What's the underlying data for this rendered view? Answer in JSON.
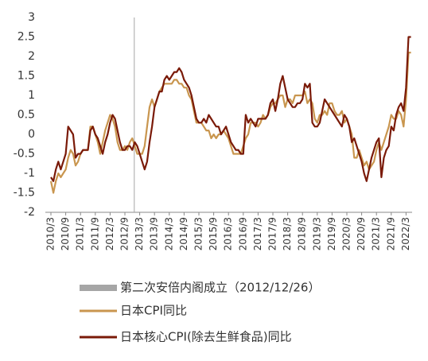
{
  "chart_data": {
    "type": "line",
    "categories": [
      "2010/3",
      null,
      null,
      null,
      null,
      null,
      "2010/9",
      null,
      null,
      null,
      null,
      null,
      "2011/3",
      null,
      null,
      null,
      null,
      null,
      "2011/9",
      null,
      null,
      null,
      null,
      null,
      "2012/3",
      null,
      null,
      null,
      null,
      null,
      "2012/9",
      null,
      null,
      null,
      null,
      null,
      "2013/3",
      null,
      null,
      null,
      null,
      null,
      "2013/9",
      null,
      null,
      null,
      null,
      null,
      "2014/3",
      null,
      null,
      null,
      null,
      null,
      "2014/9",
      null,
      null,
      null,
      null,
      null,
      "2015/3",
      null,
      null,
      null,
      null,
      null,
      "2015/9",
      null,
      null,
      null,
      null,
      null,
      "2016/3",
      null,
      null,
      null,
      null,
      null,
      "2016/9",
      null,
      null,
      null,
      null,
      null,
      "2017/3",
      null,
      null,
      null,
      null,
      null,
      "2017/9",
      null,
      null,
      null,
      null,
      null,
      "2018/3",
      null,
      null,
      null,
      null,
      null,
      "2018/9",
      null,
      null,
      null,
      null,
      null,
      "2019/3",
      null,
      null,
      null,
      null,
      null,
      "2019/9",
      null,
      null,
      null,
      null,
      null,
      "2020/3",
      null,
      null,
      null,
      null,
      null,
      "2020/9",
      null,
      null,
      null,
      null,
      null,
      "2021/3",
      null,
      null,
      null,
      null,
      null,
      "2021/9",
      null,
      null,
      null,
      null,
      null,
      "2022/3",
      null,
      null
    ],
    "series": [
      {
        "name": "日本CPI同比",
        "color": "#c9964f",
        "values": [
          -1.2,
          -1.5,
          -1.2,
          -1.0,
          -1.1,
          -1.0,
          -0.9,
          -0.6,
          -0.4,
          -0.5,
          -0.8,
          -0.7,
          -0.5,
          -0.4,
          -0.4,
          -0.4,
          0.2,
          0.2,
          0.0,
          -0.2,
          -0.5,
          -0.2,
          0.1,
          0.3,
          0.5,
          0.4,
          0.2,
          -0.2,
          -0.4,
          -0.4,
          -0.3,
          -0.4,
          -0.2,
          -0.1,
          -0.3,
          -0.5,
          -0.5,
          -0.5,
          -0.3,
          0.2,
          0.7,
          0.9,
          0.7,
          0.9,
          1.1,
          1.2,
          1.3,
          1.3,
          1.3,
          1.3,
          1.4,
          1.4,
          1.3,
          1.3,
          1.2,
          1.2,
          1.0,
          0.9,
          0.6,
          0.3,
          0.3,
          0.3,
          0.2,
          0.1,
          0.1,
          -0.1,
          0.0,
          -0.1,
          0.0,
          0.0,
          0.1,
          0.0,
          -0.1,
          -0.3,
          -0.5,
          -0.5,
          -0.5,
          -0.5,
          -0.3,
          -0.1,
          0.0,
          0.3,
          0.3,
          0.3,
          0.2,
          0.3,
          0.5,
          0.4,
          0.5,
          0.7,
          0.8,
          0.8,
          0.9,
          1.0,
          1.0,
          0.7,
          0.9,
          0.9,
          0.8,
          1.0,
          1.0,
          1.0,
          1.0,
          1.1,
          0.8,
          0.9,
          0.8,
          0.4,
          0.3,
          0.5,
          0.5,
          0.6,
          0.5,
          0.8,
          0.8,
          0.6,
          0.5,
          0.5,
          0.6,
          0.3,
          0.4,
          0.2,
          0.0,
          -0.6,
          -0.6,
          -0.4,
          -0.6,
          -0.8,
          -0.7,
          -0.9,
          -0.8,
          -0.7,
          -0.4,
          -0.2,
          -0.4,
          -0.2,
          0.0,
          0.2,
          0.5,
          0.4,
          0.4,
          0.6,
          0.5,
          0.2,
          0.9,
          2.1,
          2.1
        ]
      },
      {
        "name": "日本核心CPI(除去生鲜食品)同比",
        "color": "#7a1a08",
        "values": [
          -1.1,
          -1.2,
          -0.9,
          -0.7,
          -0.9,
          -0.7,
          -0.5,
          0.2,
          0.1,
          0.0,
          -0.6,
          -0.5,
          -0.5,
          -0.4,
          -0.4,
          -0.4,
          0.1,
          0.2,
          0.0,
          -0.1,
          -0.3,
          -0.5,
          -0.2,
          0.0,
          0.3,
          0.5,
          0.4,
          0.1,
          -0.2,
          -0.4,
          -0.4,
          -0.3,
          -0.3,
          -0.4,
          -0.2,
          -0.3,
          -0.5,
          -0.7,
          -0.9,
          -0.7,
          -0.2,
          0.2,
          0.7,
          0.9,
          1.1,
          1.1,
          1.4,
          1.5,
          1.4,
          1.5,
          1.6,
          1.6,
          1.7,
          1.6,
          1.4,
          1.3,
          1.2,
          1.0,
          0.7,
          0.4,
          0.3,
          0.3,
          0.4,
          0.3,
          0.5,
          0.4,
          0.3,
          0.2,
          0.2,
          0.0,
          0.1,
          0.2,
          0.0,
          -0.2,
          -0.3,
          -0.4,
          -0.4,
          -0.5,
          -0.5,
          0.5,
          0.3,
          0.4,
          0.3,
          0.2,
          0.4,
          0.4,
          0.4,
          0.4,
          0.5,
          0.8,
          0.9,
          0.6,
          0.9,
          1.3,
          1.5,
          1.2,
          0.9,
          0.8,
          0.7,
          0.7,
          0.8,
          0.8,
          0.9,
          1.3,
          1.2,
          1.3,
          0.3,
          0.2,
          0.2,
          0.3,
          0.6,
          0.9,
          0.8,
          0.7,
          0.6,
          0.5,
          0.4,
          0.3,
          0.2,
          0.5,
          0.4,
          0.2,
          -0.2,
          -0.1,
          -0.3,
          -0.5,
          -0.7,
          -1.0,
          -1.2,
          -0.9,
          -0.6,
          -0.4,
          -0.2,
          -0.1,
          -1.1,
          -0.6,
          -0.4,
          -0.3,
          0.2,
          0.1,
          0.5,
          0.7,
          0.8,
          0.6,
          1.2,
          2.5,
          2.5
        ]
      }
    ],
    "event": {
      "label": "第二次安倍内阁成立（2012/12/26）",
      "date": "2012/12/26",
      "color": "#a6a6a6"
    },
    "ylim": [
      -2,
      3
    ],
    "yticks": [
      3,
      2.5,
      2,
      1.5,
      1,
      0.5,
      0,
      -0.5,
      -1,
      -1.5,
      -2
    ]
  }
}
